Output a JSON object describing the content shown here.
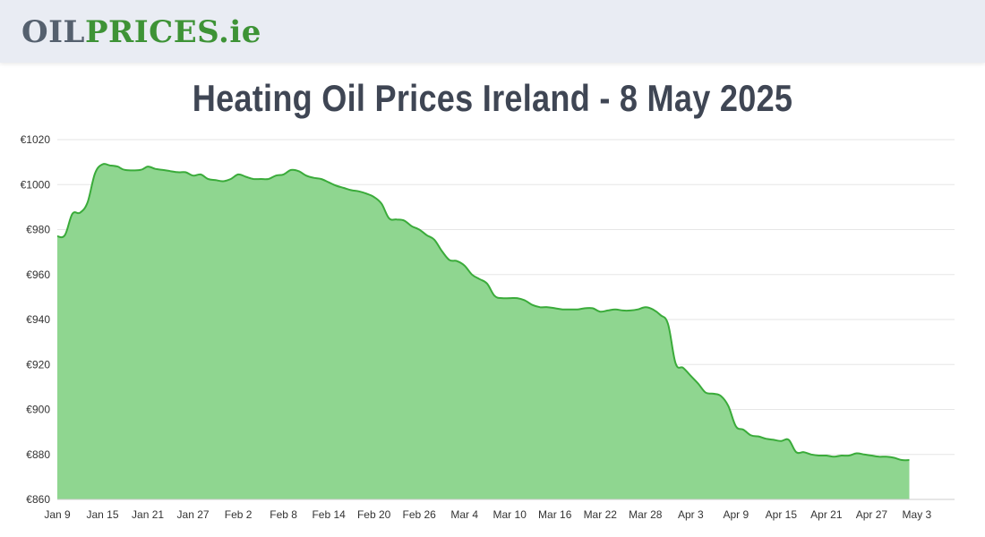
{
  "header": {
    "logo_part1": "OIL",
    "logo_part2": "PRICES",
    "logo_part3": ".ie"
  },
  "page_title": "Heating Oil Prices Ireland - 8 May 2025",
  "colors": {
    "header_bg": "#e9ecf3",
    "area_fill": "#8fd690",
    "line": "#3aab3a",
    "grid": "#e6e6e6",
    "title": "#3f4654",
    "logo_gray": "#55606e",
    "logo_green": "#3e9336"
  },
  "chart_data": {
    "type": "area",
    "title": "",
    "xlabel": "",
    "ylabel": "",
    "y_prefix": "€",
    "ylim": [
      860,
      1020
    ],
    "yticks": [
      860,
      880,
      900,
      920,
      940,
      960,
      980,
      1000,
      1020
    ],
    "grid": true,
    "x_start": "Jan 9",
    "x_tick_labels": [
      "Jan 9",
      "Jan 15",
      "Jan 21",
      "Jan 27",
      "Feb 2",
      "Feb 8",
      "Feb 14",
      "Feb 20",
      "Feb 26",
      "Mar 4",
      "Mar 10",
      "Mar 16",
      "Mar 22",
      "Mar 28",
      "Apr 3",
      "Apr 9",
      "Apr 15",
      "Apr 21",
      "Apr 27",
      "May 3"
    ],
    "x_tick_step_days": 6,
    "x_last_day": 119,
    "series": [
      {
        "values": [
          [
            0,
            977
          ],
          [
            1,
            977.5
          ],
          [
            2,
            987
          ],
          [
            3,
            987.5
          ],
          [
            4,
            992
          ],
          [
            5,
            1005
          ],
          [
            6,
            1009
          ],
          [
            7,
            1008.5
          ],
          [
            8,
            1008
          ],
          [
            9,
            1006.5
          ],
          [
            11,
            1006.5
          ],
          [
            12,
            1008
          ],
          [
            13,
            1007
          ],
          [
            14,
            1006.5
          ],
          [
            15,
            1006
          ],
          [
            16,
            1005.5
          ],
          [
            17,
            1005.5
          ],
          [
            18,
            1004
          ],
          [
            19,
            1004.5
          ],
          [
            20,
            1002.5
          ],
          [
            21,
            1002
          ],
          [
            22,
            1001.5
          ],
          [
            23,
            1002.5
          ],
          [
            24,
            1004.5
          ],
          [
            25,
            1003.5
          ],
          [
            26,
            1002.5
          ],
          [
            27,
            1002.5
          ],
          [
            28,
            1002.5
          ],
          [
            29,
            1004
          ],
          [
            30,
            1004.5
          ],
          [
            31,
            1006.5
          ],
          [
            32,
            1006
          ],
          [
            33,
            1004
          ],
          [
            34,
            1003
          ],
          [
            35,
            1002.5
          ],
          [
            36,
            1001
          ],
          [
            37,
            999.5
          ],
          [
            38,
            998.5
          ],
          [
            39,
            997.5
          ],
          [
            40,
            997
          ],
          [
            41,
            996
          ],
          [
            42,
            994.5
          ],
          [
            43,
            991.5
          ],
          [
            44,
            985
          ],
          [
            45,
            984.5
          ],
          [
            46,
            984
          ],
          [
            47,
            981.5
          ],
          [
            48,
            980
          ],
          [
            49,
            977.5
          ],
          [
            50,
            975.5
          ],
          [
            51,
            970.5
          ],
          [
            52,
            966.5
          ],
          [
            53,
            966
          ],
          [
            54,
            964
          ],
          [
            55,
            960
          ],
          [
            56,
            958
          ],
          [
            57,
            956
          ],
          [
            58,
            950.5
          ],
          [
            59,
            949.5
          ],
          [
            60,
            949.5
          ],
          [
            61,
            949.5
          ],
          [
            62,
            948.5
          ],
          [
            63,
            946.5
          ],
          [
            64,
            945.5
          ],
          [
            65,
            945.5
          ],
          [
            66,
            945
          ],
          [
            67,
            944.5
          ],
          [
            68,
            944.5
          ],
          [
            69,
            944.5
          ],
          [
            70,
            945
          ],
          [
            71,
            945
          ],
          [
            72,
            943.5
          ],
          [
            73,
            944
          ],
          [
            74,
            944.5
          ],
          [
            75,
            944
          ],
          [
            76,
            944
          ],
          [
            77,
            944.5
          ],
          [
            78,
            945.5
          ],
          [
            79,
            944.5
          ],
          [
            80,
            942
          ],
          [
            81,
            938
          ],
          [
            82,
            920.5
          ],
          [
            83,
            918.5
          ],
          [
            84,
            915
          ],
          [
            85,
            911.5
          ],
          [
            86,
            907.5
          ],
          [
            87,
            907
          ],
          [
            88,
            906
          ],
          [
            89,
            901.5
          ],
          [
            90,
            892.5
          ],
          [
            91,
            891
          ],
          [
            92,
            888.5
          ],
          [
            93,
            888
          ],
          [
            94,
            887
          ],
          [
            95,
            886.5
          ],
          [
            96,
            886
          ],
          [
            97,
            886.5
          ],
          [
            98,
            881
          ],
          [
            99,
            881
          ],
          [
            100,
            880
          ],
          [
            101,
            879.5
          ],
          [
            102,
            879.5
          ],
          [
            103,
            879
          ],
          [
            104,
            879.5
          ],
          [
            105,
            879.5
          ],
          [
            106,
            880.5
          ],
          [
            107,
            880
          ],
          [
            108,
            879.5
          ],
          [
            109,
            879
          ],
          [
            110,
            879
          ],
          [
            111,
            878.5
          ],
          [
            112,
            877.5
          ],
          [
            113,
            877.5
          ]
        ]
      }
    ]
  }
}
